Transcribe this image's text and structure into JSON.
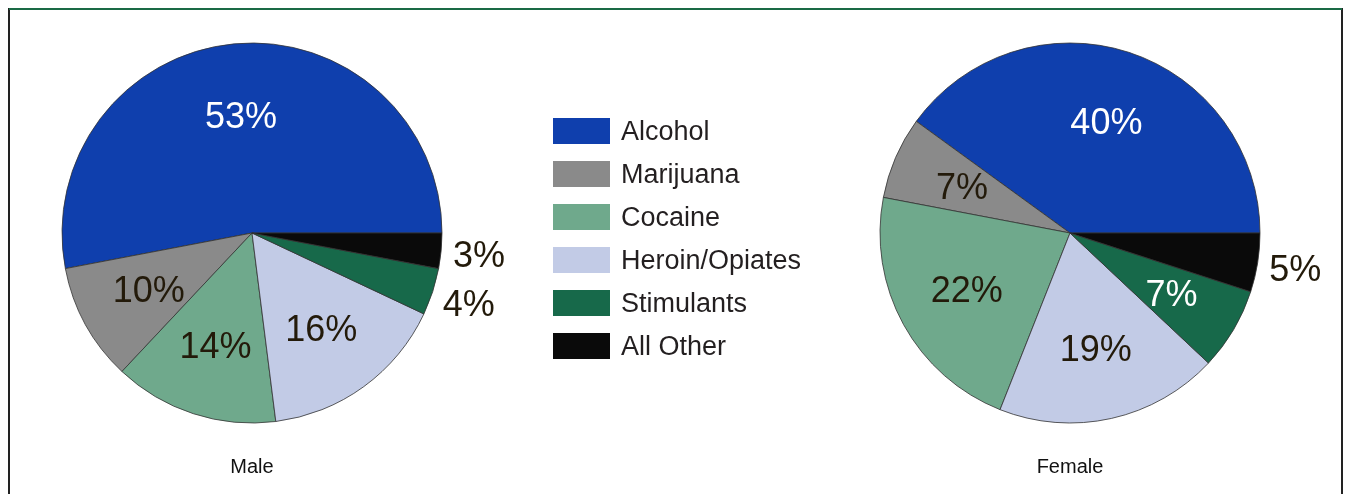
{
  "chart_data": [
    {
      "type": "pie",
      "xlabel": "Male",
      "categories": [
        "Alcohol",
        "Marijuana",
        "Cocaine",
        "Heroin/Opiates",
        "Stimulants",
        "All Other"
      ],
      "values": [
        53,
        10,
        14,
        16,
        4,
        3
      ],
      "value_labels": [
        "53%",
        "10%",
        "14%",
        "16%",
        "4%",
        "3%"
      ],
      "colors": [
        "#0f3fad",
        "#8a8a8a",
        "#6fa98c",
        "#c2cbe6",
        "#17694a",
        "#0a0a0a"
      ],
      "legend": "right"
    },
    {
      "type": "pie",
      "xlabel": "Female",
      "categories": [
        null,
        null,
        null,
        null,
        null,
        null
      ],
      "values": [
        40,
        7,
        22,
        19,
        7,
        5
      ],
      "value_labels": [
        "40%",
        "7%",
        "22%",
        "19%",
        "7%",
        "5%"
      ],
      "colors": [
        "#0f3fad",
        "#8a8a8a",
        "#6fa98c",
        "#c2cbe6",
        "#17694a",
        "#0a0a0a"
      ]
    }
  ]
}
